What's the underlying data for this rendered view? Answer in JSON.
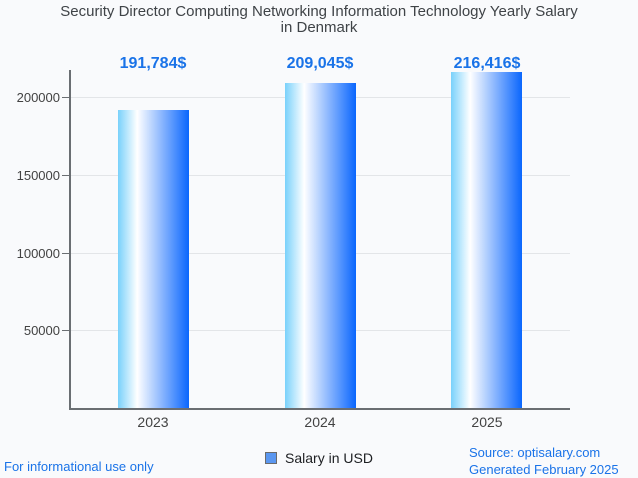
{
  "header": {
    "title_line1": "Security Director Computing Networking Information Technology Yearly Salary",
    "title_line2": "in Denmark"
  },
  "chart_data": {
    "type": "bar",
    "title": "Security Director Computing Networking Information Technology Yearly Salary in Denmark",
    "categories": [
      "2023",
      "2024",
      "2025"
    ],
    "series": [
      {
        "name": "Salary in USD",
        "values": [
          191784,
          209045,
          216416
        ]
      }
    ],
    "annotations": [
      "191,784$",
      "209,045$",
      "216,416$"
    ],
    "xlabel": "",
    "ylabel": "",
    "yticks": [
      50000,
      100000,
      150000,
      200000
    ],
    "ytick_labels": [
      "50000",
      "100000",
      "150000",
      "200000"
    ],
    "ylim": [
      0,
      217500
    ],
    "grid": true,
    "legend_position": "bottom"
  },
  "legend": {
    "label": "Salary in USD"
  },
  "footer": {
    "disclaimer": "For informational use only",
    "source": "Source: optisalary.com",
    "generated": "Generated February 2025"
  },
  "colors": {
    "background": "#f9fafc",
    "title_text": "#3f4347",
    "axis_text": "#424242",
    "axis_line": "#6a6e72",
    "gridline": "#e3e5e8",
    "annotation_text": "#1a73e8",
    "footer_text": "#1a73e8",
    "bar_gradient_start": "#79d1fb",
    "bar_gradient_mid": "#ffffff",
    "bar_gradient_end": "#0a66fd",
    "legend_swatch_fill": "#5b97f0",
    "legend_swatch_border": "#6b6b6b"
  }
}
